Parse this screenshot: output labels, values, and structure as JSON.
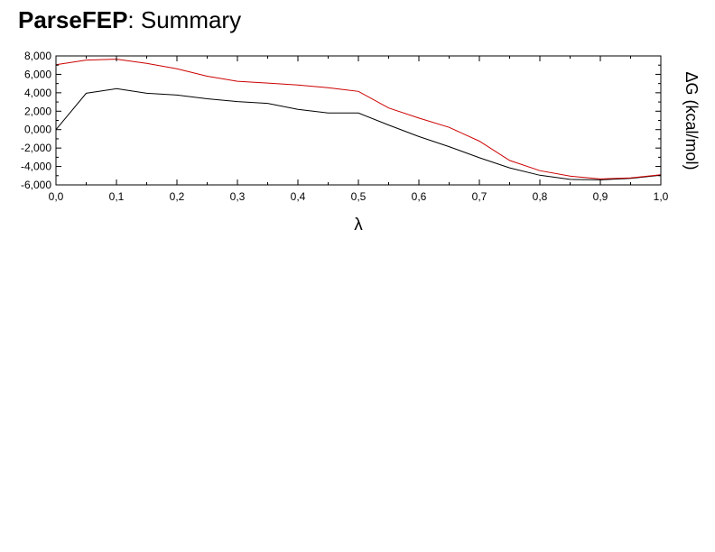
{
  "title": {
    "bold": "ParseFEP",
    "rest": ": Summary"
  },
  "chart_data": {
    "type": "line",
    "xlabel": "λ",
    "ylabel": "ΔG  (kcal/mol)",
    "xlim": [
      0.0,
      1.0
    ],
    "ylim": [
      -6000,
      8000
    ],
    "x_ticks": [
      "0,0",
      "0,1",
      "0,2",
      "0,3",
      "0,4",
      "0,5",
      "0,6",
      "0,7",
      "0,8",
      "0,9",
      "1,0"
    ],
    "y_ticks": [
      "8,000",
      "6,000",
      "4,000",
      "2,000",
      "0,000",
      "-2,000",
      "-4,000",
      "-6,000"
    ],
    "grid": false,
    "x": [
      0.0,
      0.05,
      0.1,
      0.15,
      0.2,
      0.25,
      0.3,
      0.35,
      0.4,
      0.45,
      0.5,
      0.55,
      0.6,
      0.65,
      0.7,
      0.75,
      0.8,
      0.85,
      0.9,
      0.95,
      1.0
    ],
    "series": [
      {
        "color": "#000000",
        "values": [
          0,
          3950,
          4450,
          3950,
          3750,
          3350,
          3050,
          2850,
          2200,
          1800,
          1800,
          500,
          -750,
          -1850,
          -3050,
          -4150,
          -4950,
          -5400,
          -5450,
          -5300,
          -4950
        ]
      },
      {
        "color": "#cc0000",
        "values": [
          7050,
          7550,
          7650,
          7200,
          6600,
          5800,
          5250,
          5050,
          4850,
          4550,
          4150,
          2350,
          1250,
          250,
          -1250,
          -3350,
          -4450,
          -5050,
          -5350,
          -5250,
          -4900
        ]
      }
    ]
  }
}
